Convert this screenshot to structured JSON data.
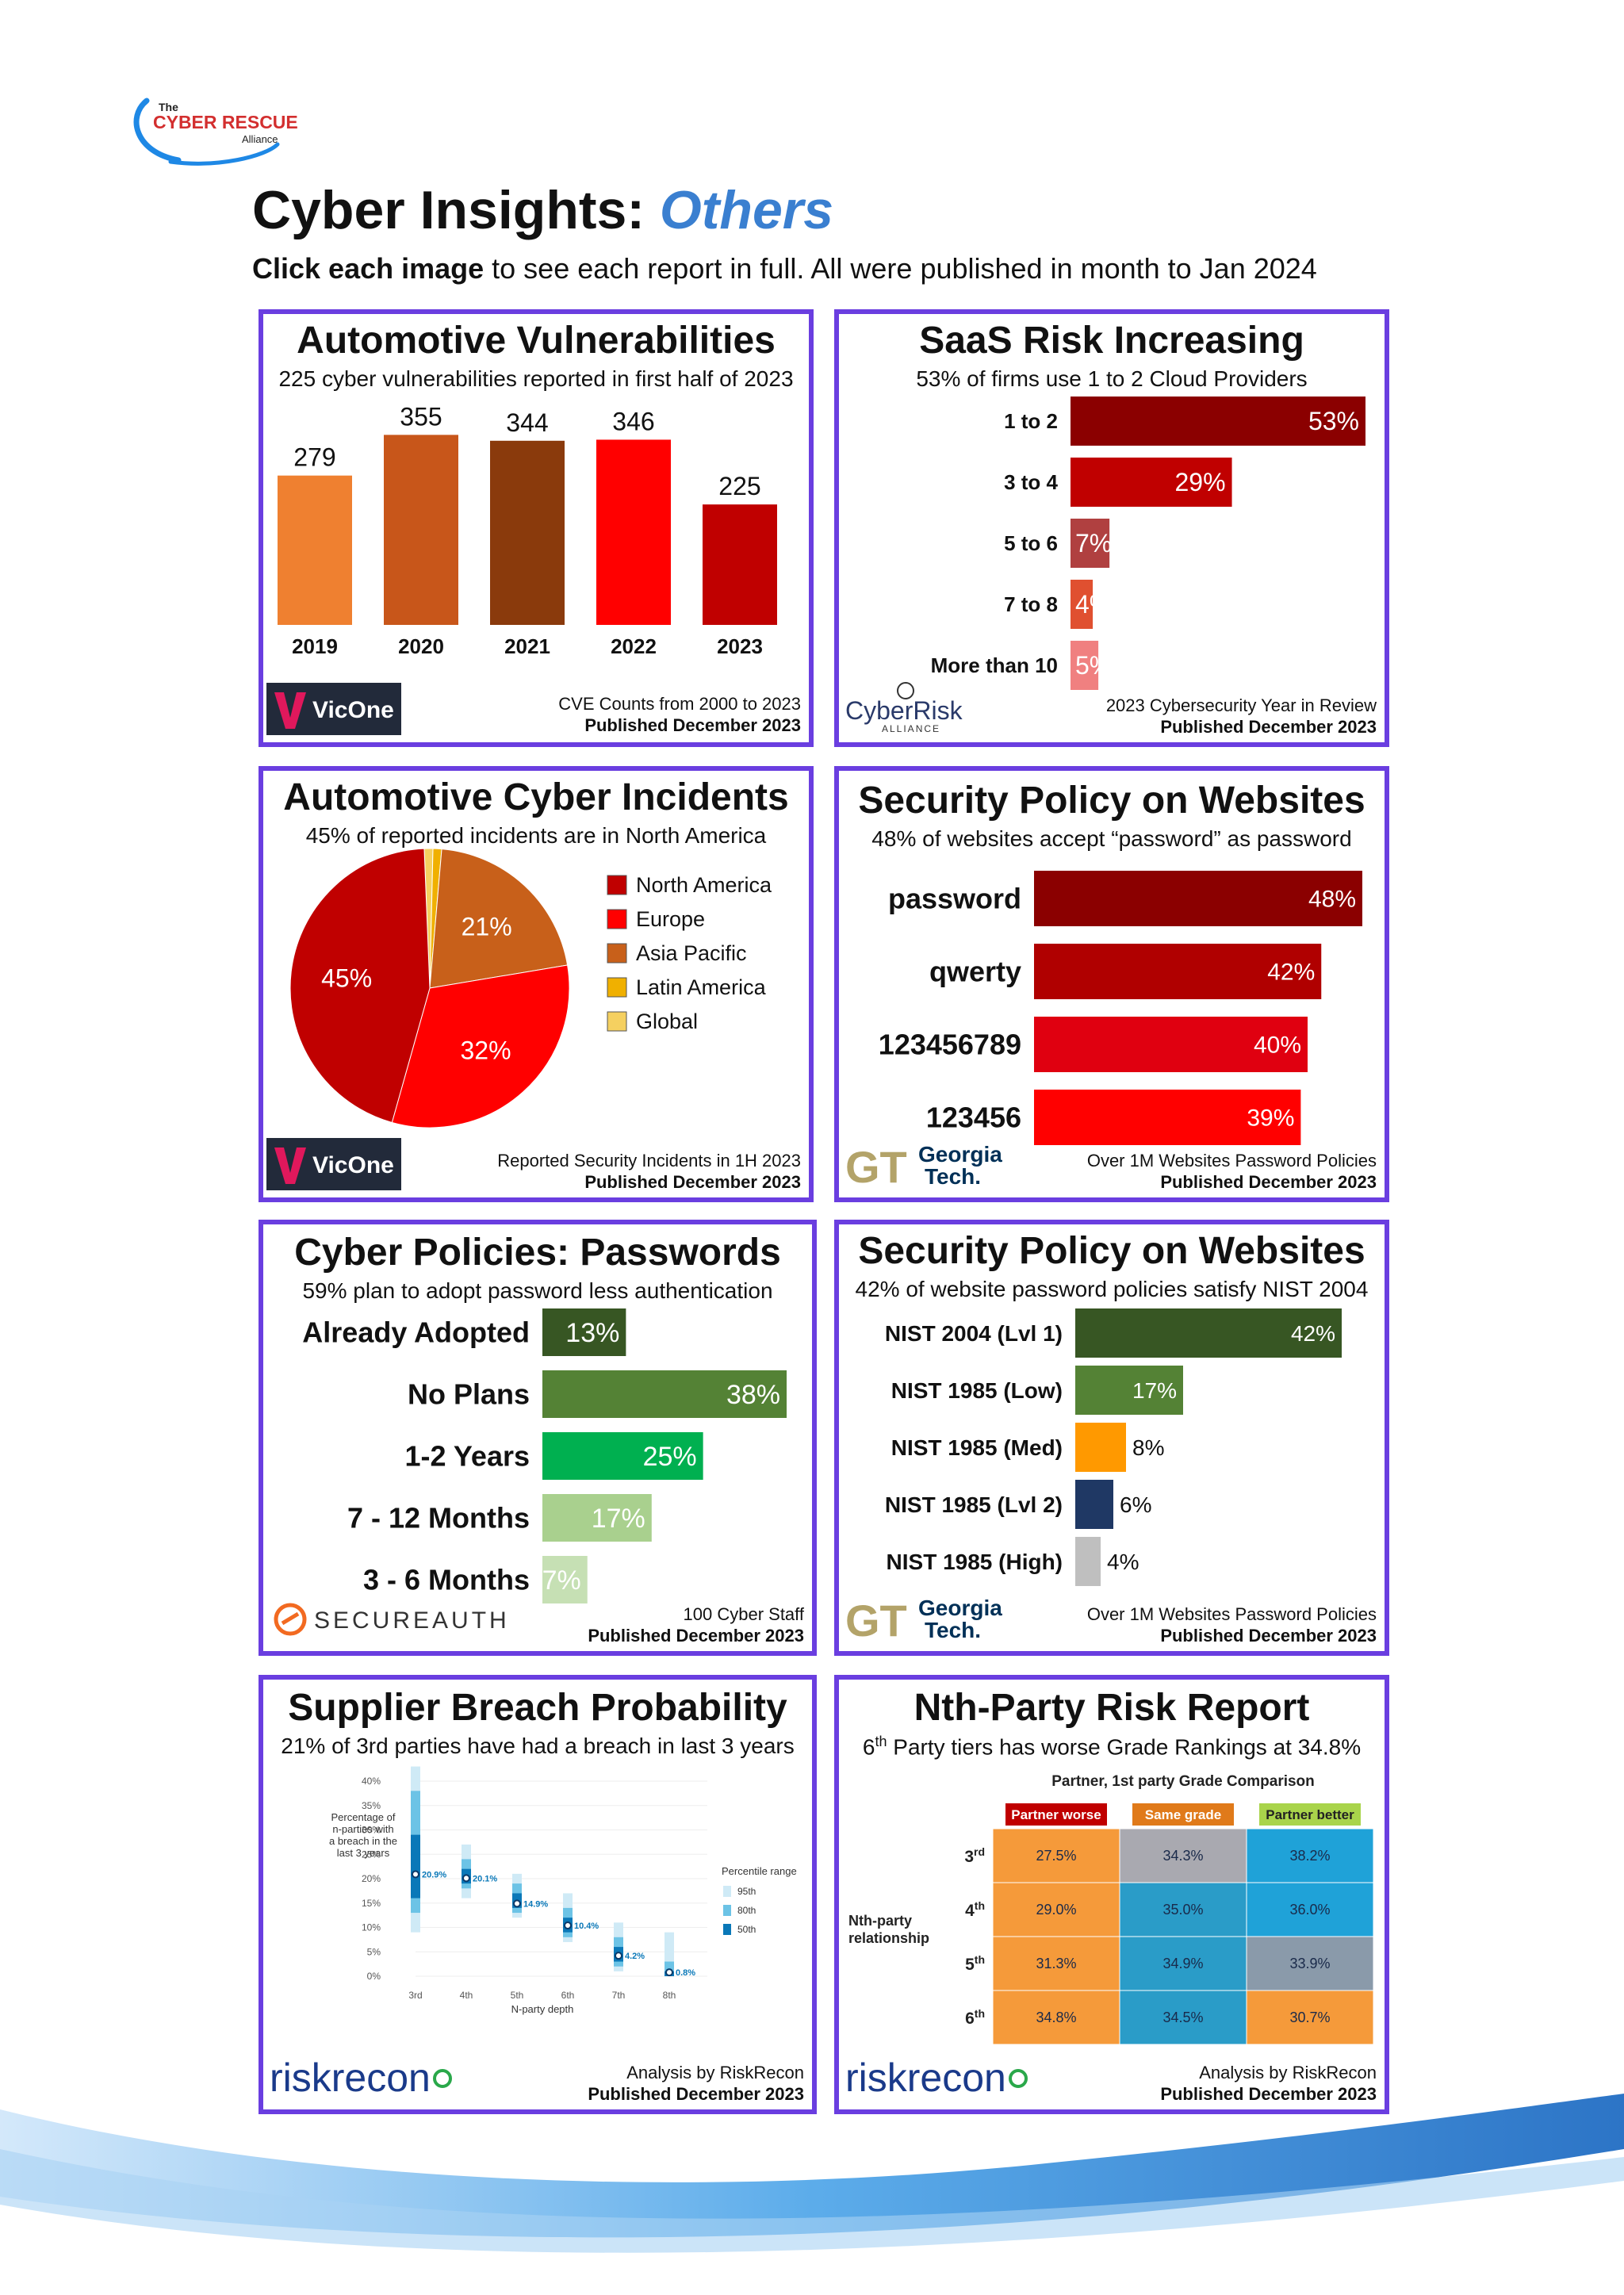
{
  "header": {
    "logo_lines": [
      "The",
      "CYBER RESCUE",
      "Alliance"
    ],
    "title_main": "Cyber Insights:",
    "title_highlight": "Others",
    "subtitle_bold": "Click each image",
    "subtitle_rest": " to see each report in full. All were published in month to Jan 2024"
  },
  "colors": {
    "panel_border": "#6a3ee0",
    "accent_blue": "#3a7fd0"
  },
  "panels": [
    {
      "title": "Automotive Vulnerabilities",
      "subtitle": "225 cyber vulnerabilities reported in first half of 2023",
      "source": "CVE Counts from 2000 to 2023",
      "published": "Published December 2023",
      "brand": "VicOne"
    },
    {
      "title": "SaaS Risk Increasing",
      "subtitle": "53% of firms use 1 to 2 Cloud Providers",
      "source": "2023 Cybersecurity Year in Review",
      "published": "Published December 2023",
      "brand": "CyberRisk",
      "brand_sub": "ALLIANCE"
    },
    {
      "title": "Automotive Cyber Incidents",
      "subtitle": "45% of reported incidents are in North America",
      "source": "Reported Security Incidents in 1H 2023",
      "published": "Published December 2023",
      "brand": "VicOne"
    },
    {
      "title": "Security Policy on Websites",
      "subtitle": "48% of websites accept “password” as password",
      "source": "Over 1M Websites Password Policies",
      "published": "Published December 2023",
      "brand": "Georgia",
      "brand_sub": "Tech."
    },
    {
      "title": "Cyber Policies: Passwords",
      "subtitle": "59% plan to adopt password less authentication",
      "source": "100 Cyber Staff",
      "published": "Published December 2023",
      "brand": "SECUREAUTH"
    },
    {
      "title": "Security Policy on Websites",
      "subtitle": "42% of website password policies satisfy NIST 2004",
      "source": "Over 1M Websites Password Policies",
      "published": "Published December 2023",
      "brand": "Georgia",
      "brand_sub": "Tech."
    },
    {
      "title": "Supplier Breach Probability",
      "subtitle": "21% of 3rd parties have had a breach in last 3 years",
      "source": "Analysis by RiskRecon",
      "published": "Published December 2023",
      "brand": "riskrecon"
    },
    {
      "title": "Nth-Party Risk Report",
      "subtitle_pre": "6",
      "subtitle_sup": "th",
      "subtitle_post": " Party tiers has worse Grade Rankings at 34.8%",
      "source": "Analysis by RiskRecon",
      "published": "Published December 2023",
      "brand": "riskrecon"
    }
  ],
  "chart_data": [
    {
      "type": "bar",
      "categories": [
        "2019",
        "2020",
        "2021",
        "2022",
        "2023"
      ],
      "values": [
        279,
        355,
        344,
        346,
        225
      ],
      "colors": [
        "#ef8030",
        "#c8561a",
        "#8a3a0c",
        "#ff0000",
        "#c00000"
      ],
      "ylim": [
        0,
        400
      ]
    },
    {
      "type": "bar",
      "orientation": "horizontal",
      "categories": [
        "1 to 2",
        "3 to 4",
        "5 to 6",
        "7 to 8",
        "More than 10"
      ],
      "values": [
        53,
        29,
        7,
        4,
        5
      ],
      "labels": [
        "53%",
        "29%",
        "7%",
        "4%",
        "5%"
      ],
      "colors": [
        "#8b0000",
        "#c00000",
        "#b04040",
        "#e05030",
        "#f08080"
      ],
      "xlim": [
        0,
        53
      ]
    },
    {
      "type": "pie",
      "categories": [
        "North America",
        "Europe",
        "Asia Pacific",
        "Latin America",
        "Global"
      ],
      "values": [
        45,
        32,
        21,
        1,
        1
      ],
      "labels": [
        "45%",
        "32%",
        "21%",
        "",
        ""
      ],
      "colors": [
        "#c00000",
        "#ff0000",
        "#c8601a",
        "#f0b000",
        "#f5d060"
      ]
    },
    {
      "type": "bar",
      "orientation": "horizontal",
      "categories": [
        "password",
        "qwerty",
        "123456789",
        "123456"
      ],
      "values": [
        48,
        42,
        40,
        39
      ],
      "labels": [
        "48%",
        "42%",
        "40%",
        "39%"
      ],
      "colors": [
        "#8b0000",
        "#b00000",
        "#e00010",
        "#ff0000"
      ],
      "xlim": [
        0,
        48
      ]
    },
    {
      "type": "bar",
      "orientation": "horizontal",
      "categories": [
        "Already Adopted",
        "No Plans",
        "1-2 Years",
        "7 - 12 Months",
        "3 - 6 Months"
      ],
      "values": [
        13,
        38,
        25,
        17,
        7
      ],
      "labels": [
        "13%",
        "38%",
        "25%",
        "17%",
        "7%"
      ],
      "colors": [
        "#375623",
        "#548235",
        "#00b050",
        "#a9d08e",
        "#c6e0b4"
      ],
      "xlim": [
        0,
        38
      ]
    },
    {
      "type": "bar",
      "orientation": "horizontal",
      "categories": [
        "NIST 2004 (Lvl 1)",
        "NIST 1985 (Low)",
        "NIST 1985 (Med)",
        "NIST 1985 (Lvl 2)",
        "NIST 1985 (High)"
      ],
      "values": [
        42,
        17,
        8,
        6,
        4
      ],
      "labels": [
        "42%",
        "17%",
        "8%",
        "6%",
        "4%"
      ],
      "colors": [
        "#375623",
        "#548235",
        "#ff9900",
        "#1f3864",
        "#bfbfbf"
      ],
      "xlim": [
        0,
        42
      ]
    },
    {
      "type": "scatter",
      "title": "",
      "ylabel": "Percentage of n-parties with a breach in the last 3 years",
      "xlabel": "N-party depth",
      "categories": [
        "3rd",
        "4th",
        "5th",
        "6th",
        "7th",
        "8th"
      ],
      "values": [
        20.9,
        20.1,
        14.9,
        10.4,
        4.2,
        0.8
      ],
      "labels": [
        "20.9%",
        "20.1%",
        "14.9%",
        "10.4%",
        "4.2%",
        "0.8%"
      ],
      "range_95": [
        [
          9,
          43
        ],
        [
          16,
          27
        ],
        [
          12,
          21
        ],
        [
          7,
          17
        ],
        [
          1,
          11
        ],
        [
          0,
          9
        ]
      ],
      "range_80": [
        [
          13,
          38
        ],
        [
          18,
          24
        ],
        [
          13,
          19
        ],
        [
          8,
          14
        ],
        [
          2,
          8
        ],
        [
          0,
          3
        ]
      ],
      "range_50": [
        [
          16,
          29
        ],
        [
          19,
          22
        ],
        [
          14,
          17
        ],
        [
          9,
          12
        ],
        [
          3,
          6
        ],
        [
          0,
          1
        ]
      ],
      "yticks": [
        "0%",
        "5%",
        "10%",
        "15%",
        "20%",
        "25%",
        "30%",
        "35%",
        "40%"
      ],
      "ylim": [
        0,
        40
      ],
      "legend_title": "Percentile range",
      "legend": [
        "95th",
        "80th",
        "50th"
      ],
      "legend_colors": [
        "#cfeaf6",
        "#6cc3e6",
        "#0a78b8"
      ]
    },
    {
      "type": "heatmap",
      "title": "Partner, 1st party Grade Comparison",
      "row_axis_label": [
        "Nth-party",
        "relationship"
      ],
      "columns": [
        "Partner worse",
        "Same grade",
        "Partner better"
      ],
      "column_colors": [
        "#c00000",
        "#e07a1a",
        "#a9d44b"
      ],
      "rows": [
        [
          "3",
          "rd"
        ],
        [
          "4",
          "th"
        ],
        [
          "5",
          "th"
        ],
        [
          "6",
          "th"
        ]
      ],
      "values": [
        [
          "27.5%",
          "34.3%",
          "38.2%"
        ],
        [
          "29.0%",
          "35.0%",
          "36.0%"
        ],
        [
          "31.3%",
          "34.9%",
          "33.9%"
        ],
        [
          "34.8%",
          "34.5%",
          "30.7%"
        ]
      ],
      "cell_colors": [
        [
          "#f59a3a",
          "#a9a9b0",
          "#1fa2d8"
        ],
        [
          "#f59a3a",
          "#2a9cc8",
          "#1fa2d8"
        ],
        [
          "#f59a3a",
          "#2a9cc8",
          "#8a9aaa"
        ],
        [
          "#f59a3a",
          "#2a9cc8",
          "#f59a3a"
        ]
      ]
    }
  ]
}
